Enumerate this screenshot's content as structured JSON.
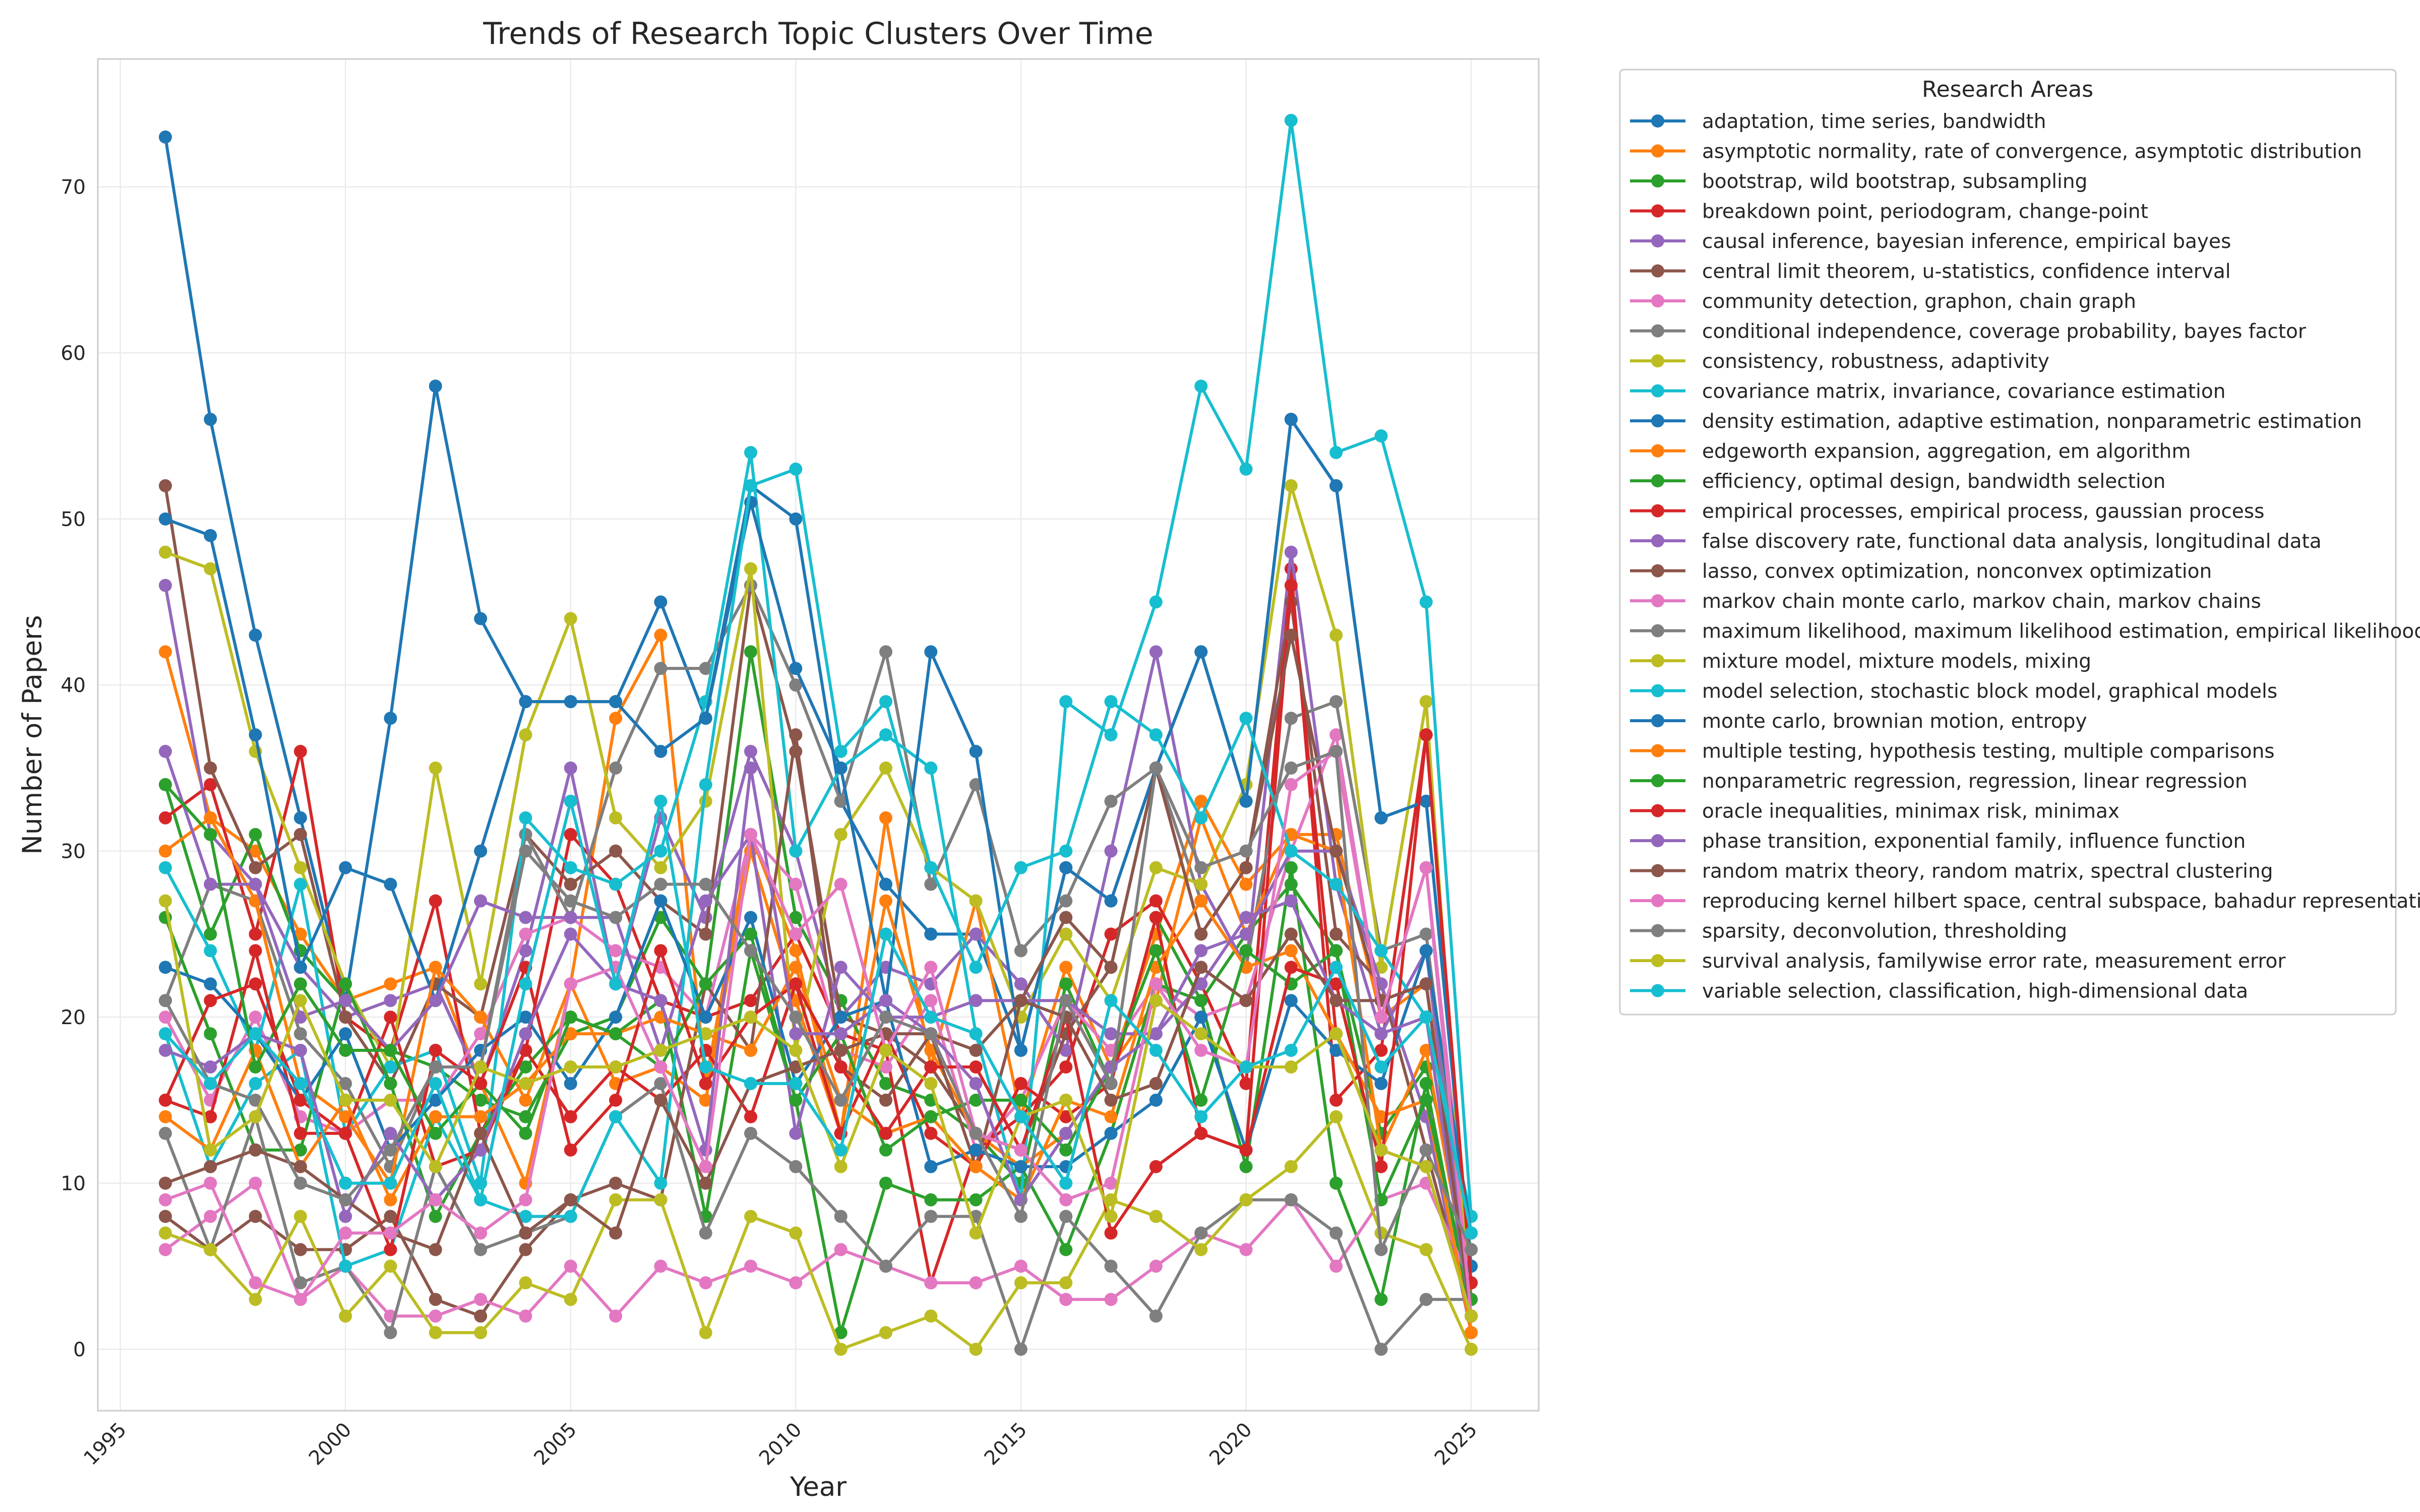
{
  "chart_data": {
    "type": "line",
    "title": "Trends of Research Topic Clusters Over Time",
    "xlabel": "Year",
    "ylabel": "Number of Papers",
    "xlim": [
      1994.5,
      2026.5
    ],
    "ylim": [
      -3.7,
      77.7
    ],
    "x_ticks": [
      1995,
      2000,
      2005,
      2010,
      2015,
      2020,
      2025
    ],
    "y_ticks": [
      0,
      10,
      20,
      30,
      40,
      50,
      60,
      70
    ],
    "grid": true,
    "legend_title": "Research Areas",
    "legend_position": "outside-right",
    "x": [
      1996,
      1997,
      1998,
      1999,
      2000,
      2001,
      2002,
      2003,
      2004,
      2005,
      2006,
      2007,
      2008,
      2009,
      2010,
      2011,
      2012,
      2013,
      2014,
      2015,
      2016,
      2017,
      2018,
      2019,
      2020,
      2021,
      2022,
      2023,
      2024,
      2025
    ],
    "series": [
      {
        "name": "adaptation, time series, bandwidth",
        "color": "#1f77b4",
        "values": [
          73,
          56,
          43,
          32,
          21,
          38,
          58,
          44,
          39,
          39,
          39,
          45,
          38,
          52,
          50,
          33,
          28,
          25,
          25,
          18,
          29,
          27,
          35,
          42,
          33,
          56,
          52,
          32,
          33,
          5
        ]
      },
      {
        "name": "asymptotic normality, rate of convergence, asymptotic distribution",
        "color": "#ff7f0e",
        "values": [
          42,
          32,
          30,
          25,
          21,
          22,
          23,
          16,
          10,
          22,
          38,
          43,
          16,
          31,
          24,
          13,
          32,
          17,
          27,
          14,
          23,
          17,
          25,
          33,
          28,
          31,
          31,
          20,
          22,
          4
        ]
      },
      {
        "name": "bootstrap, wild bootstrap, subsampling",
        "color": "#2ca02c",
        "values": [
          34,
          25,
          31,
          24,
          21,
          18,
          17,
          15,
          14,
          19,
          20,
          26,
          22,
          42,
          26,
          21,
          16,
          15,
          13,
          10,
          22,
          16,
          26,
          21,
          25,
          28,
          24,
          13,
          17,
          6
        ]
      },
      {
        "name": "breakdown point, periodogram, change-point",
        "color": "#d62728",
        "values": [
          32,
          34,
          25,
          36,
          20,
          18,
          27,
          13,
          18,
          31,
          28,
          21,
          20,
          21,
          25,
          19,
          18,
          4,
          12,
          14,
          17,
          25,
          27,
          22,
          16,
          47,
          15,
          18,
          37,
          3
        ]
      },
      {
        "name": "causal inference, bayesian inference, empirical bayes",
        "color": "#9467bd",
        "values": [
          46,
          31,
          28,
          23,
          20,
          21,
          22,
          16,
          24,
          35,
          22,
          32,
          26,
          36,
          30,
          20,
          23,
          22,
          25,
          22,
          18,
          30,
          42,
          28,
          23,
          48,
          28,
          19,
          24,
          2
        ]
      },
      {
        "name": "central limit theorem, u-statistics, confidence interval",
        "color": "#8c564b",
        "values": [
          52,
          35,
          29,
          31,
          20,
          16,
          22,
          20,
          31,
          28,
          30,
          27,
          25,
          46,
          36,
          20,
          19,
          17,
          13,
          12,
          19,
          23,
          35,
          25,
          29,
          45,
          25,
          22,
          12,
          2
        ]
      },
      {
        "name": "community detection, graphon, chain graph",
        "color": "#e377c2",
        "values": [
          20,
          15,
          20,
          14,
          13,
          15,
          15,
          19,
          25,
          26,
          24,
          23,
          20,
          31,
          28,
          18,
          17,
          21,
          12,
          15,
          21,
          18,
          22,
          20,
          21,
          30,
          37,
          20,
          29,
          4
        ]
      },
      {
        "name": "conditional independence, coverage probability, bayes factor",
        "color": "#7f7f7f",
        "values": [
          21,
          28,
          27,
          19,
          16,
          11,
          17,
          17,
          31,
          26,
          35,
          41,
          41,
          46,
          40,
          33,
          42,
          28,
          34,
          24,
          27,
          33,
          35,
          27,
          23,
          38,
          39,
          24,
          25,
          4
        ]
      },
      {
        "name": "consistency, robustness, adaptivity",
        "color": "#bcbd22",
        "values": [
          48,
          47,
          36,
          29,
          22,
          17,
          35,
          22,
          37,
          44,
          32,
          29,
          33,
          47,
          18,
          31,
          35,
          29,
          27,
          20,
          25,
          21,
          29,
          28,
          34,
          52,
          43,
          23,
          39,
          1
        ]
      },
      {
        "name": "covariance matrix, invariance, covariance estimation",
        "color": "#17becf",
        "values": [
          29,
          24,
          18,
          28,
          13,
          17,
          18,
          10,
          32,
          29,
          28,
          30,
          39,
          54,
          30,
          35,
          37,
          35,
          19,
          9,
          39,
          37,
          45,
          58,
          53,
          74,
          54,
          55,
          45,
          8
        ]
      },
      {
        "name": "density estimation, adaptive estimation, nonparametric estimation",
        "color": "#1f77b4",
        "values": [
          50,
          49,
          37,
          23,
          29,
          28,
          21,
          30,
          39,
          39,
          39,
          36,
          38,
          51,
          41,
          35,
          21,
          42,
          36,
          18,
          29,
          27,
          35,
          42,
          33,
          56,
          52,
          32,
          33,
          5
        ]
      },
      {
        "name": "edgeworth expansion, aggregation, em algorithm",
        "color": "#ff7f0e",
        "values": [
          30,
          32,
          27,
          16,
          14,
          10,
          23,
          20,
          15,
          22,
          16,
          17,
          15,
          30,
          21,
          13,
          27,
          18,
          13,
          11,
          13,
          17,
          21,
          32,
          25,
          31,
          30,
          12,
          18,
          3
        ]
      },
      {
        "name": "efficiency, optimal design, bandwidth selection",
        "color": "#2ca02c",
        "values": [
          26,
          19,
          12,
          12,
          22,
          16,
          8,
          13,
          17,
          20,
          19,
          21,
          8,
          24,
          15,
          1,
          10,
          9,
          9,
          11,
          6,
          13,
          22,
          21,
          11,
          29,
          10,
          3,
          16,
          2
        ]
      },
      {
        "name": "empirical processes, empirical process, gaussian process",
        "color": "#d62728",
        "values": [
          15,
          14,
          24,
          13,
          13,
          20,
          11,
          12,
          18,
          14,
          17,
          15,
          18,
          14,
          22,
          13,
          19,
          13,
          11,
          16,
          14,
          16,
          26,
          13,
          12,
          46,
          19,
          12,
          11,
          2
        ]
      },
      {
        "name": "false discovery rate, functional data analysis, longitudinal data",
        "color": "#9467bd",
        "values": [
          36,
          28,
          28,
          20,
          21,
          18,
          21,
          27,
          26,
          26,
          26,
          18,
          27,
          31,
          13,
          23,
          20,
          20,
          21,
          21,
          21,
          19,
          19,
          24,
          25,
          30,
          30,
          22,
          14,
          1
        ]
      },
      {
        "name": "lasso, convex optimization, nonconvex optimization",
        "color": "#8c564b",
        "values": [
          8,
          6,
          8,
          6,
          6,
          8,
          3,
          2,
          6,
          9,
          10,
          9,
          22,
          18,
          37,
          17,
          15,
          19,
          11,
          21,
          26,
          23,
          35,
          25,
          29,
          43,
          30,
          21,
          22,
          2
        ]
      },
      {
        "name": "markov chain monte carlo, markov chain, markov chains",
        "color": "#e377c2",
        "values": [
          6,
          8,
          10,
          3,
          5,
          2,
          2,
          3,
          2,
          5,
          2,
          5,
          4,
          5,
          4,
          6,
          5,
          4,
          4,
          5,
          3,
          3,
          5,
          7,
          6,
          9,
          5,
          9,
          10,
          4
        ]
      },
      {
        "name": "maximum likelihood, maximum likelihood estimation, empirical likelihood",
        "color": "#7f7f7f",
        "values": [
          13,
          6,
          14,
          4,
          5,
          1,
          11,
          6,
          7,
          8,
          14,
          16,
          7,
          13,
          11,
          8,
          5,
          8,
          8,
          0,
          8,
          5,
          2,
          7,
          9,
          9,
          7,
          0,
          3,
          3
        ]
      },
      {
        "name": "mixture model, mixture models, mixing",
        "color": "#bcbd22",
        "values": [
          7,
          6,
          3,
          8,
          2,
          5,
          1,
          1,
          4,
          3,
          9,
          9,
          1,
          8,
          7,
          0,
          1,
          2,
          0,
          4,
          4,
          9,
          8,
          6,
          9,
          11,
          14,
          7,
          6,
          0
        ]
      },
      {
        "name": "model selection, stochastic block model, graphical models",
        "color": "#17becf",
        "values": [
          19,
          11,
          16,
          18,
          5,
          6,
          14,
          9,
          8,
          8,
          14,
          10,
          34,
          52,
          53,
          36,
          39,
          29,
          23,
          29,
          30,
          39,
          37,
          32,
          38,
          30,
          28,
          24,
          20,
          8
        ]
      },
      {
        "name": "monte carlo, brownian motion, entropy",
        "color": "#1f77b4",
        "values": [
          23,
          22,
          19,
          15,
          19,
          12,
          15,
          18,
          20,
          16,
          20,
          27,
          20,
          26,
          16,
          20,
          21,
          11,
          12,
          11,
          11,
          13,
          15,
          20,
          12,
          21,
          18,
          16,
          24,
          7
        ]
      },
      {
        "name": "multiple testing, hypothesis testing, multiple comparisons",
        "color": "#ff7f0e",
        "values": [
          14,
          12,
          18,
          11,
          15,
          9,
          14,
          14,
          16,
          19,
          19,
          20,
          19,
          18,
          23,
          15,
          13,
          14,
          11,
          9,
          15,
          14,
          23,
          27,
          23,
          24,
          19,
          14,
          15,
          1
        ]
      },
      {
        "name": "nonparametric regression, regression, linear regression",
        "color": "#2ca02c",
        "values": [
          34,
          31,
          17,
          22,
          18,
          18,
          13,
          16,
          13,
          20,
          19,
          17,
          22,
          25,
          15,
          19,
          12,
          14,
          15,
          15,
          12,
          17,
          24,
          15,
          24,
          22,
          24,
          9,
          15,
          3
        ]
      },
      {
        "name": "oracle inequalities, minimax risk, minimax",
        "color": "#d62728",
        "values": [
          15,
          21,
          22,
          15,
          13,
          6,
          18,
          16,
          23,
          12,
          15,
          24,
          16,
          20,
          22,
          17,
          13,
          17,
          17,
          12,
          20,
          7,
          11,
          13,
          12,
          23,
          22,
          11,
          37,
          4
        ]
      },
      {
        "name": "phase transition, exponential family, influence function",
        "color": "#9467bd",
        "values": [
          18,
          17,
          19,
          18,
          8,
          13,
          9,
          12,
          19,
          25,
          22,
          21,
          12,
          35,
          19,
          19,
          21,
          19,
          16,
          9,
          13,
          17,
          19,
          22,
          26,
          27,
          21,
          19,
          20,
          2
        ]
      },
      {
        "name": "random matrix theory, random matrix, spectral clustering",
        "color": "#8c564b",
        "values": [
          10,
          11,
          12,
          11,
          9,
          7,
          6,
          13,
          7,
          9,
          7,
          15,
          10,
          16,
          17,
          18,
          19,
          19,
          18,
          21,
          20,
          15,
          16,
          23,
          21,
          25,
          21,
          21,
          22,
          2
        ]
      },
      {
        "name": "reproducing kernel hilbert space, central subspace, bahadur representation",
        "color": "#e377c2",
        "values": [
          9,
          10,
          4,
          3,
          7,
          7,
          9,
          7,
          9,
          22,
          23,
          17,
          11,
          31,
          25,
          28,
          18,
          23,
          13,
          12,
          9,
          10,
          22,
          18,
          17,
          34,
          36,
          20,
          29,
          2
        ]
      },
      {
        "name": "sparsity, deconvolution, thresholding",
        "color": "#7f7f7f",
        "values": [
          21,
          16,
          15,
          10,
          9,
          12,
          17,
          17,
          30,
          27,
          26,
          28,
          28,
          24,
          20,
          15,
          20,
          19,
          13,
          8,
          21,
          16,
          35,
          29,
          30,
          35,
          36,
          6,
          12,
          6
        ]
      },
      {
        "name": "survival analysis, familywise error rate, measurement error",
        "color": "#bcbd22",
        "values": [
          27,
          12,
          14,
          21,
          15,
          15,
          11,
          17,
          16,
          17,
          17,
          18,
          19,
          20,
          18,
          11,
          18,
          16,
          7,
          14,
          15,
          8,
          21,
          19,
          17,
          17,
          19,
          12,
          11,
          2
        ]
      },
      {
        "name": "variable selection, classification, high-dimensional data",
        "color": "#17becf",
        "values": [
          19,
          16,
          19,
          16,
          10,
          10,
          16,
          9,
          22,
          33,
          22,
          33,
          17,
          16,
          16,
          12,
          25,
          20,
          19,
          14,
          10,
          21,
          18,
          14,
          17,
          18,
          23,
          17,
          20,
          7
        ]
      }
    ]
  }
}
